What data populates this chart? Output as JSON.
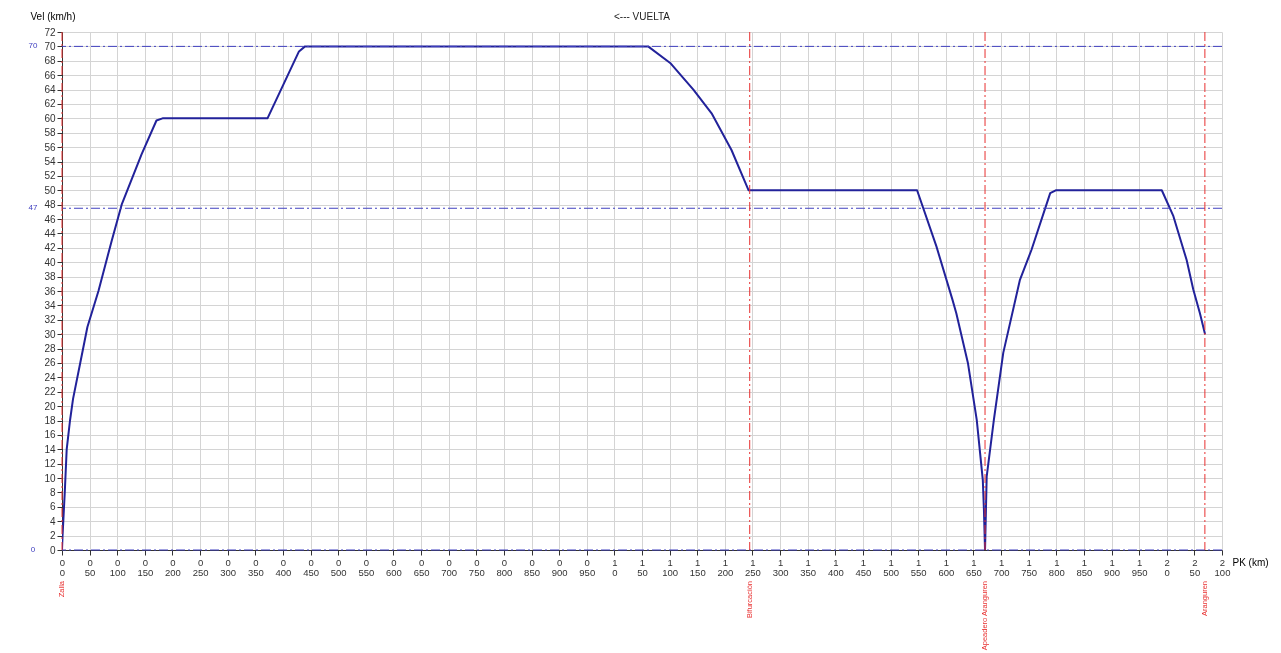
{
  "chart_data": {
    "type": "line",
    "title": "<--- VUELTA",
    "xlabel": "PK (km)",
    "ylabel": "Vel (km/h)",
    "x": [
      0,
      1,
      3,
      5,
      8.5,
      14.5,
      20,
      33,
      46,
      66,
      90,
      108,
      144,
      171,
      182,
      372,
      429,
      440,
      1061,
      1101,
      1143,
      1176,
      1212,
      1243,
      1548,
      1583,
      1612,
      1619,
      1640,
      1656,
      1667,
      1669,
      1671,
      1674,
      1687,
      1704,
      1734,
      1755,
      1789,
      1799,
      1991,
      2012,
      2036,
      2048,
      2060,
      2069
    ],
    "series": [
      {
        "color": "#22229a",
        "values": [
          0,
          2,
          5,
          8,
          14,
          18,
          21,
          26,
          31,
          36,
          43,
          48,
          55,
          59.7,
          60,
          60,
          69.3,
          70,
          70,
          67.7,
          64,
          60.7,
          55.6,
          50,
          50,
          42.2,
          34.8,
          32.9,
          26,
          18.1,
          9.7,
          5.6,
          0,
          10.2,
          18.1,
          27.4,
          37.5,
          41.7,
          49.6,
          50,
          50,
          46.4,
          40.3,
          36.2,
          32.9,
          30.1
        ]
      }
    ],
    "xlim": [
      0,
      2100
    ],
    "ylim": [
      0,
      72
    ],
    "xticks": [
      {
        "value": 0,
        "label": "0\n0"
      },
      {
        "value": 50,
        "label": "0\n50"
      },
      {
        "value": 100,
        "label": "0\n100"
      },
      {
        "value": 150,
        "label": "0\n150"
      },
      {
        "value": 200,
        "label": "0\n200"
      },
      {
        "value": 250,
        "label": "0\n250"
      },
      {
        "value": 300,
        "label": "0\n300"
      },
      {
        "value": 350,
        "label": "0\n350"
      },
      {
        "value": 400,
        "label": "0\n400"
      },
      {
        "value": 450,
        "label": "0\n450"
      },
      {
        "value": 500,
        "label": "0\n500"
      },
      {
        "value": 550,
        "label": "0\n550"
      },
      {
        "value": 600,
        "label": "0\n600"
      },
      {
        "value": 650,
        "label": "0\n650"
      },
      {
        "value": 700,
        "label": "0\n700"
      },
      {
        "value": 750,
        "label": "0\n750"
      },
      {
        "value": 800,
        "label": "0\n800"
      },
      {
        "value": 850,
        "label": "0\n850"
      },
      {
        "value": 900,
        "label": "0\n900"
      },
      {
        "value": 950,
        "label": "0\n950"
      },
      {
        "value": 1000,
        "label": "1\n0"
      },
      {
        "value": 1050,
        "label": "1\n50"
      },
      {
        "value": 1100,
        "label": "1\n100"
      },
      {
        "value": 1150,
        "label": "1\n150"
      },
      {
        "value": 1200,
        "label": "1\n200"
      },
      {
        "value": 1250,
        "label": "1\n250"
      },
      {
        "value": 1300,
        "label": "1\n300"
      },
      {
        "value": 1350,
        "label": "1\n350"
      },
      {
        "value": 1400,
        "label": "1\n400"
      },
      {
        "value": 1450,
        "label": "1\n450"
      },
      {
        "value": 1500,
        "label": "1\n500"
      },
      {
        "value": 1550,
        "label": "1\n550"
      },
      {
        "value": 1600,
        "label": "1\n600"
      },
      {
        "value": 1650,
        "label": "1\n650"
      },
      {
        "value": 1700,
        "label": "1\n700"
      },
      {
        "value": 1750,
        "label": "1\n750"
      },
      {
        "value": 1800,
        "label": "1\n800"
      },
      {
        "value": 1850,
        "label": "1\n850"
      },
      {
        "value": 1900,
        "label": "1\n900"
      },
      {
        "value": 1950,
        "label": "1\n950"
      },
      {
        "value": 2000,
        "label": "2\n0"
      },
      {
        "value": 2050,
        "label": "2\n50"
      },
      {
        "value": 2100,
        "label": "2\n100"
      }
    ],
    "yticks": [
      0,
      2,
      4,
      6,
      8,
      10,
      12,
      14,
      16,
      18,
      20,
      22,
      24,
      26,
      28,
      30,
      32,
      34,
      36,
      38,
      40,
      42,
      44,
      46,
      48,
      50,
      52,
      54,
      56,
      58,
      60,
      62,
      64,
      66,
      68,
      70,
      72
    ],
    "grid": true,
    "marker": "none",
    "line_style": "solid",
    "ref_lines": [
      {
        "axis": "y",
        "value": 70,
        "label": "70",
        "color": "#4040c0",
        "line_style": "dashed"
      },
      {
        "axis": "y",
        "value": 47.5,
        "label": "47",
        "color": "#4040c0",
        "line_style": "dashed"
      },
      {
        "axis": "y",
        "value": 0,
        "label": "0",
        "color": "#4040c0",
        "line_style": "dashed"
      },
      {
        "axis": "x",
        "value": 0,
        "label": "Zalla",
        "color": "#e83030",
        "line_style": "dashed"
      },
      {
        "axis": "x",
        "value": 1245,
        "label": "Bifurcación",
        "color": "#e83030",
        "line_style": "dashed"
      },
      {
        "axis": "x",
        "value": 1671,
        "label": "Apeadero Aranguren",
        "color": "#e83030",
        "line_style": "dashed"
      },
      {
        "axis": "x",
        "value": 2069,
        "label": "Aranguren",
        "color": "#e83030",
        "line_style": "dashed"
      }
    ]
  }
}
